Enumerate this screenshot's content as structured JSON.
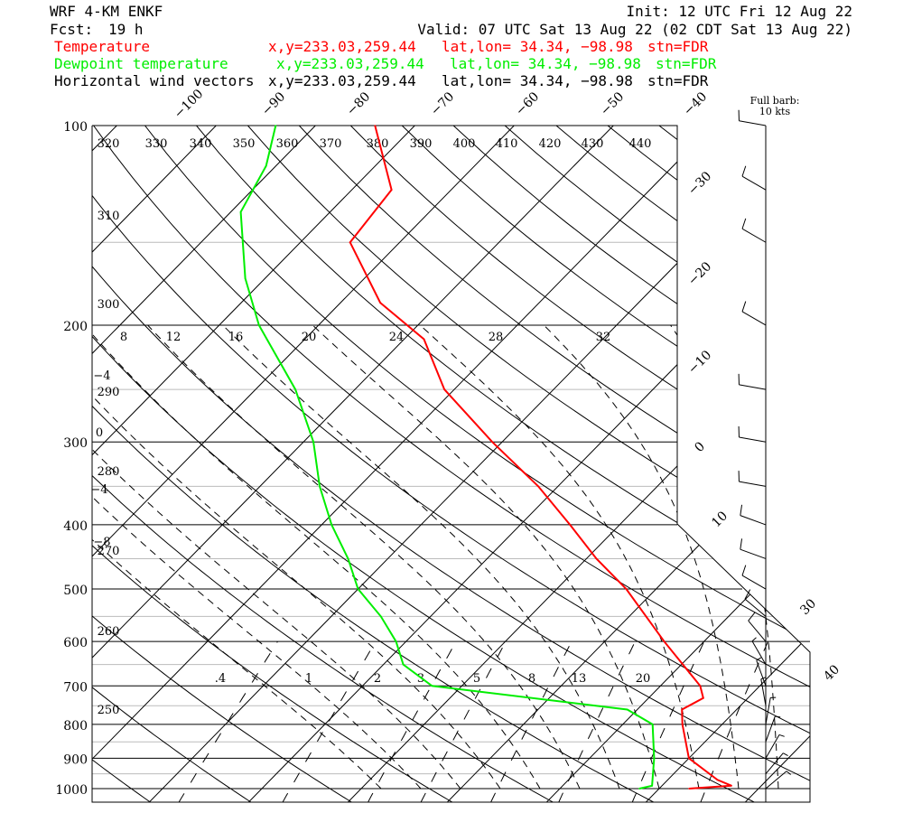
{
  "header": {
    "model": "WRF 4-KM ENKF",
    "init": "Init: 12 UTC Fri 12 Aug 22",
    "fcst_label": "Fcst:",
    "fcst_value": "19 h",
    "valid": "Valid: 07 UTC Sat 13 Aug 22 (02 CDT Sat 13 Aug 22)"
  },
  "legend": [
    {
      "name": "Temperature",
      "info": "x,y=233.03,259.44",
      "latlon": "lat,lon= 34.34, −98.98",
      "stn": "stn=FDR",
      "color": "#ff0000"
    },
    {
      "name": "Dewpoint temperature",
      "info": "x,y=233.03,259.44",
      "latlon": "lat,lon= 34.34, −98.98",
      "stn": "stn=FDR",
      "color": "#00ee00"
    },
    {
      "name": "Horizontal wind vectors",
      "info": "x,y=233.03,259.44",
      "latlon": "lat,lon= 34.34, −98.98",
      "stn": "stn=FDR",
      "color": "#000000"
    }
  ],
  "barb_key": {
    "line1": "Full barb:",
    "line2": "10 kts"
  },
  "chart_data": {
    "type": "line",
    "subtype": "skew-T log-p diagram",
    "pressure_axis": {
      "levels": [
        100,
        200,
        300,
        400,
        500,
        600,
        700,
        800,
        900,
        1000
      ],
      "labels": [
        "100",
        "200",
        "300",
        "400",
        "500",
        "600",
        "700",
        "800",
        "900",
        "1000"
      ],
      "scale": "log"
    },
    "temperature_ticks_top": [
      "−100",
      "−90",
      "−80",
      "−70",
      "−60",
      "−50",
      "−40"
    ],
    "temperature_ticks_right": [
      "−30",
      "−20",
      "−10",
      "0",
      "10",
      "30",
      "40"
    ],
    "theta_labels": [
      "320",
      "330",
      "340",
      "350",
      "360",
      "370",
      "380",
      "390",
      "400",
      "410",
      "420",
      "430",
      "440",
      "310",
      "300",
      "290",
      "280",
      "270",
      "260",
      "250"
    ],
    "thetae_labels": [
      "8",
      "12",
      "16",
      "20",
      "24",
      "28",
      "32",
      "−4",
      "0",
      "−4",
      "−8"
    ],
    "mixing_ratio_labels": [
      ".4",
      "1",
      "2",
      "3",
      "5",
      "8",
      "13",
      "20"
    ],
    "series": [
      {
        "name": "Temperature",
        "color": "#ff0000",
        "points": [
          {
            "p": 1000,
            "t": 23
          },
          {
            "p": 990,
            "t": 27
          },
          {
            "p": 970,
            "t": 25
          },
          {
            "p": 900,
            "t": 20
          },
          {
            "p": 800,
            "t": 16
          },
          {
            "p": 760,
            "t": 14.5
          },
          {
            "p": 730,
            "t": 15.5
          },
          {
            "p": 700,
            "t": 14
          },
          {
            "p": 600,
            "t": 6
          },
          {
            "p": 500,
            "t": -3
          },
          {
            "p": 450,
            "t": -9
          },
          {
            "p": 400,
            "t": -15
          },
          {
            "p": 350,
            "t": -22
          },
          {
            "p": 300,
            "t": -31
          },
          {
            "p": 250,
            "t": -41
          },
          {
            "p": 210,
            "t": -48
          },
          {
            "p": 185,
            "t": -56
          },
          {
            "p": 150,
            "t": -65
          },
          {
            "p": 125,
            "t": -66
          },
          {
            "p": 100,
            "t": -74
          }
        ]
      },
      {
        "name": "Dewpoint temperature",
        "color": "#00ee00",
        "points": [
          {
            "p": 1000,
            "t": 18
          },
          {
            "p": 990,
            "t": 19
          },
          {
            "p": 900,
            "t": 16.5
          },
          {
            "p": 800,
            "t": 13
          },
          {
            "p": 760,
            "t": 9
          },
          {
            "p": 700,
            "t": -13
          },
          {
            "p": 650,
            "t": -18
          },
          {
            "p": 600,
            "t": -21
          },
          {
            "p": 550,
            "t": -25
          },
          {
            "p": 500,
            "t": -30
          },
          {
            "p": 450,
            "t": -34
          },
          {
            "p": 400,
            "t": -39
          },
          {
            "p": 350,
            "t": -44
          },
          {
            "p": 300,
            "t": -49
          },
          {
            "p": 250,
            "t": -56
          },
          {
            "p": 200,
            "t": -66
          },
          {
            "p": 170,
            "t": -72
          },
          {
            "p": 135,
            "t": -79
          },
          {
            "p": 115,
            "t": -81
          },
          {
            "p": 100,
            "t": -84
          }
        ]
      }
    ],
    "wind_barbs": [
      {
        "p": 100,
        "dir": 280,
        "spd": 10
      },
      {
        "p": 125,
        "dir": 300,
        "spd": 10
      },
      {
        "p": 150,
        "dir": 300,
        "spd": 10
      },
      {
        "p": 200,
        "dir": 300,
        "spd": 10
      },
      {
        "p": 250,
        "dir": 280,
        "spd": 10
      },
      {
        "p": 300,
        "dir": 280,
        "spd": 10
      },
      {
        "p": 350,
        "dir": 280,
        "spd": 10
      },
      {
        "p": 400,
        "dir": 290,
        "spd": 10
      },
      {
        "p": 450,
        "dir": 290,
        "spd": 10
      },
      {
        "p": 500,
        "dir": 300,
        "spd": 10
      },
      {
        "p": 550,
        "dir": 310,
        "spd": 10
      },
      {
        "p": 600,
        "dir": 320,
        "spd": 10
      },
      {
        "p": 650,
        "dir": 330,
        "spd": 5
      },
      {
        "p": 700,
        "dir": 340,
        "spd": 5
      },
      {
        "p": 750,
        "dir": 350,
        "spd": 5
      },
      {
        "p": 800,
        "dir": 10,
        "spd": 5
      },
      {
        "p": 850,
        "dir": 20,
        "spd": 5
      },
      {
        "p": 900,
        "dir": 30,
        "spd": 5
      },
      {
        "p": 950,
        "dir": 40,
        "spd": 5
      },
      {
        "p": 1000,
        "dir": 50,
        "spd": 5
      }
    ]
  }
}
